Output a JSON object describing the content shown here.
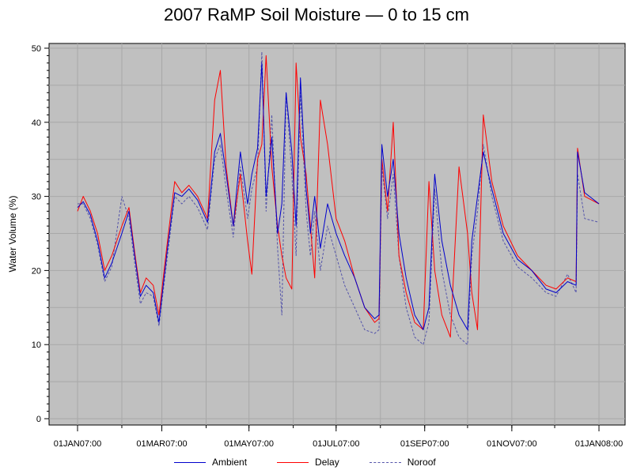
{
  "chart_data": {
    "type": "line",
    "title": "2007 RaMP Soil Moisture — 0 to 15 cm",
    "ylabel": "Water Volume (%)",
    "xlabel": "",
    "ylim": [
      0,
      50
    ],
    "yticks": [
      0,
      10,
      20,
      30,
      40,
      50
    ],
    "xlim": [
      "2007-01-01",
      "2008-01-01"
    ],
    "xtick_dates": [
      "2007-01-01",
      "2007-03-01",
      "2007-05-01",
      "2007-07-01",
      "2007-09-01",
      "2007-11-01",
      "2008-01-01"
    ],
    "xtick_labels": [
      "01JAN07:00",
      "01MAR07:00",
      "01MAY07:00",
      "01JUL07:00",
      "01SEP07:00",
      "01NOV07:00",
      "01JAN08:00"
    ],
    "grid": true,
    "legend_position": "bottom",
    "series": [
      {
        "name": "Ambient",
        "color": "#0000cc",
        "style": "solid",
        "points": [
          [
            "2007-01-01",
            28.5
          ],
          [
            "2007-01-05",
            29.3
          ],
          [
            "2007-01-10",
            27.5
          ],
          [
            "2007-01-15",
            24
          ],
          [
            "2007-01-20",
            19
          ],
          [
            "2007-01-25",
            21
          ],
          [
            "2007-02-01",
            25
          ],
          [
            "2007-02-06",
            28
          ],
          [
            "2007-02-10",
            22
          ],
          [
            "2007-02-14",
            16.5
          ],
          [
            "2007-02-18",
            18
          ],
          [
            "2007-02-23",
            17
          ],
          [
            "2007-02-27",
            13
          ],
          [
            "2007-03-05",
            23
          ],
          [
            "2007-03-10",
            30.5
          ],
          [
            "2007-03-15",
            30
          ],
          [
            "2007-03-20",
            31
          ],
          [
            "2007-03-26",
            29.5
          ],
          [
            "2007-04-02",
            26.5
          ],
          [
            "2007-04-07",
            36
          ],
          [
            "2007-04-11",
            38.5
          ],
          [
            "2007-04-15",
            33
          ],
          [
            "2007-04-20",
            26
          ],
          [
            "2007-04-25",
            36
          ],
          [
            "2007-04-30",
            29
          ],
          [
            "2007-05-03",
            33
          ],
          [
            "2007-05-07",
            36.5
          ],
          [
            "2007-05-10",
            48
          ],
          [
            "2007-05-13",
            30
          ],
          [
            "2007-05-17",
            38
          ],
          [
            "2007-05-21",
            25
          ],
          [
            "2007-05-24",
            29
          ],
          [
            "2007-05-27",
            44
          ],
          [
            "2007-05-31",
            36
          ],
          [
            "2007-06-03",
            26
          ],
          [
            "2007-06-06",
            46
          ],
          [
            "2007-06-10",
            31
          ],
          [
            "2007-06-13",
            25
          ],
          [
            "2007-06-16",
            30
          ],
          [
            "2007-06-20",
            23
          ],
          [
            "2007-06-25",
            29
          ],
          [
            "2007-07-01",
            25
          ],
          [
            "2007-07-07",
            22
          ],
          [
            "2007-07-14",
            19
          ],
          [
            "2007-07-21",
            15
          ],
          [
            "2007-07-28",
            13.5
          ],
          [
            "2007-07-31",
            14
          ],
          [
            "2007-08-02",
            37
          ],
          [
            "2007-08-06",
            30
          ],
          [
            "2007-08-10",
            35
          ],
          [
            "2007-08-14",
            25
          ],
          [
            "2007-08-19",
            19
          ],
          [
            "2007-08-25",
            14
          ],
          [
            "2007-08-31",
            12
          ],
          [
            "2007-09-04",
            15
          ],
          [
            "2007-09-08",
            33
          ],
          [
            "2007-09-13",
            24
          ],
          [
            "2007-09-19",
            18
          ],
          [
            "2007-09-25",
            14
          ],
          [
            "2007-10-01",
            12
          ],
          [
            "2007-10-04",
            24
          ],
          [
            "2007-10-08",
            30
          ],
          [
            "2007-10-12",
            36
          ],
          [
            "2007-10-18",
            31
          ],
          [
            "2007-10-26",
            25
          ],
          [
            "2007-11-05",
            21.5
          ],
          [
            "2007-11-15",
            20
          ],
          [
            "2007-11-25",
            17.5
          ],
          [
            "2007-12-02",
            17
          ],
          [
            "2007-12-10",
            18.5
          ],
          [
            "2007-12-16",
            18
          ],
          [
            "2007-12-17",
            36
          ],
          [
            "2007-12-22",
            30.5
          ],
          [
            "2008-01-01",
            29
          ]
        ]
      },
      {
        "name": "Delay",
        "color": "#ff0000",
        "style": "solid",
        "points": [
          [
            "2007-01-01",
            28
          ],
          [
            "2007-01-05",
            30
          ],
          [
            "2007-01-10",
            28
          ],
          [
            "2007-01-15",
            25
          ],
          [
            "2007-01-20",
            20
          ],
          [
            "2007-01-25",
            22
          ],
          [
            "2007-02-01",
            26
          ],
          [
            "2007-02-06",
            28.5
          ],
          [
            "2007-02-10",
            22.5
          ],
          [
            "2007-02-14",
            17
          ],
          [
            "2007-02-18",
            19
          ],
          [
            "2007-02-23",
            18
          ],
          [
            "2007-02-27",
            14
          ],
          [
            "2007-03-05",
            24
          ],
          [
            "2007-03-10",
            32
          ],
          [
            "2007-03-15",
            30.5
          ],
          [
            "2007-03-20",
            31.5
          ],
          [
            "2007-03-26",
            30
          ],
          [
            "2007-04-02",
            27
          ],
          [
            "2007-04-07",
            43
          ],
          [
            "2007-04-11",
            47
          ],
          [
            "2007-04-15",
            34
          ],
          [
            "2007-04-20",
            26
          ],
          [
            "2007-04-25",
            33
          ],
          [
            "2007-04-30",
            24
          ],
          [
            "2007-05-03",
            19.5
          ],
          [
            "2007-05-07",
            35
          ],
          [
            "2007-05-10",
            37
          ],
          [
            "2007-05-13",
            49
          ],
          [
            "2007-05-17",
            34
          ],
          [
            "2007-05-21",
            26
          ],
          [
            "2007-05-24",
            22
          ],
          [
            "2007-05-27",
            19
          ],
          [
            "2007-05-31",
            17.5
          ],
          [
            "2007-06-03",
            48
          ],
          [
            "2007-06-06",
            38
          ],
          [
            "2007-06-10",
            33
          ],
          [
            "2007-06-13",
            26
          ],
          [
            "2007-06-16",
            19
          ],
          [
            "2007-06-20",
            43
          ],
          [
            "2007-06-25",
            37
          ],
          [
            "2007-07-01",
            27
          ],
          [
            "2007-07-07",
            24
          ],
          [
            "2007-07-14",
            19
          ],
          [
            "2007-07-21",
            15
          ],
          [
            "2007-07-28",
            13
          ],
          [
            "2007-07-31",
            13.5
          ],
          [
            "2007-08-02",
            35
          ],
          [
            "2007-08-06",
            28
          ],
          [
            "2007-08-10",
            40
          ],
          [
            "2007-08-14",
            22
          ],
          [
            "2007-08-19",
            17
          ],
          [
            "2007-08-25",
            13
          ],
          [
            "2007-08-31",
            12
          ],
          [
            "2007-09-04",
            32
          ],
          [
            "2007-09-08",
            20
          ],
          [
            "2007-09-13",
            14
          ],
          [
            "2007-09-19",
            11
          ],
          [
            "2007-09-25",
            34
          ],
          [
            "2007-10-01",
            25
          ],
          [
            "2007-10-04",
            17
          ],
          [
            "2007-10-08",
            12
          ],
          [
            "2007-10-12",
            41
          ],
          [
            "2007-10-18",
            32
          ],
          [
            "2007-10-26",
            26
          ],
          [
            "2007-11-05",
            22
          ],
          [
            "2007-11-15",
            20
          ],
          [
            "2007-11-25",
            18
          ],
          [
            "2007-12-02",
            17.5
          ],
          [
            "2007-12-10",
            19
          ],
          [
            "2007-12-16",
            18.5
          ],
          [
            "2007-12-17",
            36.5
          ],
          [
            "2007-12-22",
            30
          ],
          [
            "2008-01-01",
            29
          ]
        ]
      },
      {
        "name": "Noroof",
        "color": "#5555aa",
        "style": "dashed",
        "points": [
          [
            "2007-01-01",
            29
          ],
          [
            "2007-01-05",
            29
          ],
          [
            "2007-01-10",
            27
          ],
          [
            "2007-01-15",
            23.5
          ],
          [
            "2007-01-20",
            18.5
          ],
          [
            "2007-01-25",
            20.5
          ],
          [
            "2007-02-01",
            30
          ],
          [
            "2007-02-06",
            27
          ],
          [
            "2007-02-10",
            21
          ],
          [
            "2007-02-14",
            15.5
          ],
          [
            "2007-02-18",
            17
          ],
          [
            "2007-02-23",
            16.5
          ],
          [
            "2007-02-27",
            12.5
          ],
          [
            "2007-03-05",
            22
          ],
          [
            "2007-03-10",
            30
          ],
          [
            "2007-03-15",
            29
          ],
          [
            "2007-03-20",
            30
          ],
          [
            "2007-03-26",
            28.5
          ],
          [
            "2007-04-02",
            25.5
          ],
          [
            "2007-04-07",
            35
          ],
          [
            "2007-04-11",
            37
          ],
          [
            "2007-04-15",
            31
          ],
          [
            "2007-04-20",
            24.5
          ],
          [
            "2007-04-25",
            34
          ],
          [
            "2007-04-30",
            27
          ],
          [
            "2007-05-03",
            31
          ],
          [
            "2007-05-07",
            34
          ],
          [
            "2007-05-10",
            49.5
          ],
          [
            "2007-05-13",
            28
          ],
          [
            "2007-05-17",
            41
          ],
          [
            "2007-05-21",
            23
          ],
          [
            "2007-05-24",
            14
          ],
          [
            "2007-05-27",
            44
          ],
          [
            "2007-05-31",
            33
          ],
          [
            "2007-06-03",
            22
          ],
          [
            "2007-06-06",
            44
          ],
          [
            "2007-06-10",
            28
          ],
          [
            "2007-06-13",
            22
          ],
          [
            "2007-06-16",
            28
          ],
          [
            "2007-06-20",
            20
          ],
          [
            "2007-06-25",
            26
          ],
          [
            "2007-07-01",
            22
          ],
          [
            "2007-07-07",
            18
          ],
          [
            "2007-07-14",
            15
          ],
          [
            "2007-07-21",
            12
          ],
          [
            "2007-07-28",
            11.5
          ],
          [
            "2007-07-31",
            12
          ],
          [
            "2007-08-02",
            34
          ],
          [
            "2007-08-06",
            27
          ],
          [
            "2007-08-10",
            33
          ],
          [
            "2007-08-14",
            22
          ],
          [
            "2007-08-19",
            15
          ],
          [
            "2007-08-25",
            11
          ],
          [
            "2007-08-31",
            10
          ],
          [
            "2007-09-04",
            13
          ],
          [
            "2007-09-08",
            31
          ],
          [
            "2007-09-13",
            20
          ],
          [
            "2007-09-19",
            14
          ],
          [
            "2007-09-25",
            11
          ],
          [
            "2007-10-01",
            10
          ],
          [
            "2007-10-04",
            22
          ],
          [
            "2007-10-08",
            28
          ],
          [
            "2007-10-12",
            37
          ],
          [
            "2007-10-18",
            30
          ],
          [
            "2007-10-26",
            24
          ],
          [
            "2007-11-05",
            20.5
          ],
          [
            "2007-11-15",
            19
          ],
          [
            "2007-11-25",
            17
          ],
          [
            "2007-12-02",
            16.5
          ],
          [
            "2007-12-10",
            19.5
          ],
          [
            "2007-12-16",
            17
          ],
          [
            "2007-12-17",
            33
          ],
          [
            "2007-12-22",
            27
          ],
          [
            "2008-01-01",
            26.5
          ]
        ]
      }
    ]
  }
}
